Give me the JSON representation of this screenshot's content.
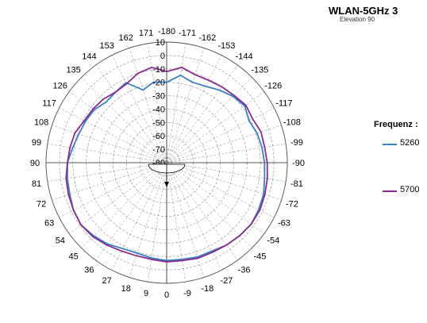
{
  "header": {
    "title": "WLAN-5GHz   3",
    "subtitle": "Elevation 90"
  },
  "legend": {
    "title": "Frequenz :",
    "placement": "right"
  },
  "chart_data": {
    "type": "polar",
    "angle_labels": [
      "-180",
      "-171",
      "-162",
      "-153",
      "-144",
      "-135",
      "-126",
      "-117",
      "-108",
      "-99",
      "-90",
      "-81",
      "-72",
      "-63",
      "-54",
      "-45",
      "-36",
      "-27",
      "-18",
      "-9",
      "0",
      "9",
      "18",
      "27",
      "36",
      "45",
      "54",
      "63",
      "72",
      "81",
      "90",
      "99",
      "108",
      "117",
      "126",
      "135",
      "144",
      "153",
      "162",
      "171"
    ],
    "radial_labels": [
      "10",
      "0",
      "-10",
      "-20",
      "-30",
      "-40",
      "-50",
      "-60",
      "-70",
      "-80"
    ],
    "rlim": [
      -80,
      10
    ],
    "angle_step": 9,
    "grid": true,
    "series": [
      {
        "name": "5260",
        "color": "#3b7fc4",
        "angles": [
          -180,
          -171,
          -162,
          -153,
          -144,
          -135,
          -126,
          -117,
          -108,
          -99,
          -90,
          -81,
          -72,
          -63,
          -54,
          -45,
          -36,
          -27,
          -18,
          -9,
          0,
          9,
          18,
          27,
          36,
          45,
          54,
          63,
          72,
          81,
          90,
          99,
          108,
          117,
          126,
          135,
          144,
          153,
          162,
          171
        ],
        "values": [
          -20,
          -14,
          -17,
          -16,
          -13,
          -10,
          -8,
          -11,
          -9,
          -8,
          -7,
          -6,
          -4,
          -3,
          -2,
          -3,
          -4,
          -6,
          -6,
          -7,
          -7,
          -8,
          -9,
          -8,
          -5,
          -3,
          -1,
          -2,
          -4,
          -5,
          -6,
          -9,
          -11,
          -12,
          -13,
          -16,
          -15,
          -13,
          -23,
          -19
        ]
      },
      {
        "name": "5700",
        "color": "#8a2a8e",
        "angles": [
          -180,
          -171,
          -162,
          -153,
          -144,
          -135,
          -126,
          -117,
          -108,
          -99,
          -90,
          -81,
          -72,
          -63,
          -54,
          -45,
          -36,
          -27,
          -18,
          -9,
          0,
          9,
          18,
          27,
          36,
          45,
          54,
          63,
          72,
          81,
          90,
          99,
          108,
          117,
          126,
          135,
          144,
          153,
          162,
          171
        ],
        "values": [
          -12,
          -8,
          -11,
          -11,
          -10,
          -9,
          -7,
          -8,
          -6,
          -6,
          -5,
          -4,
          -3,
          -2,
          -2,
          -3,
          -4,
          -5,
          -5,
          -6,
          -6,
          -7,
          -7,
          -6,
          -4,
          -2,
          -1,
          -2,
          -3,
          -4,
          -6,
          -7,
          -8,
          -11,
          -12,
          -13,
          -15,
          -14,
          -10,
          -8
        ]
      }
    ]
  }
}
